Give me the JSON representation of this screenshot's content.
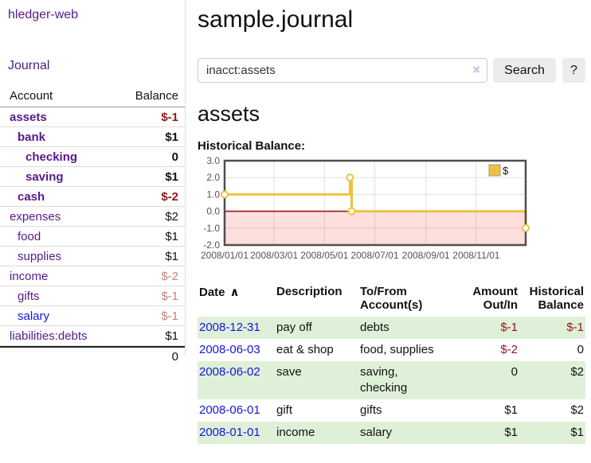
{
  "sidebar": {
    "app_title": "hledger-web",
    "nav": {
      "journal_label": "Journal"
    },
    "accounts_table": {
      "col_account": "Account",
      "col_balance": "Balance",
      "rows": [
        {
          "label": "assets",
          "indent": 0,
          "bold": true,
          "balance": "$-1",
          "balance_tone": "neg-strong",
          "label_color": "purple"
        },
        {
          "label": "bank",
          "indent": 1,
          "bold": true,
          "balance": "$1",
          "balance_tone": "normal",
          "label_color": "purple"
        },
        {
          "label": "checking",
          "indent": 2,
          "bold": true,
          "balance": "0",
          "balance_tone": "normal",
          "label_color": "purple"
        },
        {
          "label": "saving",
          "indent": 2,
          "bold": true,
          "balance": "$1",
          "balance_tone": "normal",
          "label_color": "purple"
        },
        {
          "label": "cash",
          "indent": 1,
          "bold": true,
          "balance": "$-2",
          "balance_tone": "neg-strong",
          "label_color": "purple"
        },
        {
          "label": "expenses",
          "indent": 0,
          "bold": false,
          "balance": "$2",
          "balance_tone": "normal",
          "label_color": "purple"
        },
        {
          "label": "food",
          "indent": 1,
          "bold": false,
          "balance": "$1",
          "balance_tone": "normal",
          "label_color": "purple"
        },
        {
          "label": "supplies",
          "indent": 1,
          "bold": false,
          "balance": "$1",
          "balance_tone": "normal",
          "label_color": "purple"
        },
        {
          "label": "income",
          "indent": 0,
          "bold": false,
          "balance": "$-2",
          "balance_tone": "neg-muted",
          "label_color": "purple"
        },
        {
          "label": "gifts",
          "indent": 1,
          "bold": false,
          "balance": "$-1",
          "balance_tone": "neg-muted",
          "label_color": "purple"
        },
        {
          "label": "salary",
          "indent": 1,
          "bold": false,
          "balance": "$-1",
          "balance_tone": "neg-muted",
          "label_color": "blue"
        },
        {
          "label": "liabilities:debts",
          "indent": 0,
          "bold": false,
          "balance": "$1",
          "balance_tone": "normal",
          "label_color": "purple"
        }
      ],
      "total": "0"
    }
  },
  "main": {
    "title": "sample.journal",
    "search": {
      "value": "inacct:assets",
      "clear_icon": "×",
      "search_label": "Search",
      "help_label": "?"
    },
    "account_heading": "assets",
    "chart_label": "Historical Balance:",
    "register_table": {
      "headers": {
        "date": "Date",
        "sort_asc_icon": "∧",
        "description": "Description",
        "accounts": "To/From\nAccount(s)",
        "amount": "Amount\nOut/In",
        "balance": "Historical\nBalance"
      },
      "rows": [
        {
          "date": "2008-12-31",
          "description": "pay off",
          "accounts": "debts",
          "amount": "$-1",
          "amount_negative": true,
          "balance": "$-1",
          "balance_negative": true
        },
        {
          "date": "2008-06-03",
          "description": "eat & shop",
          "accounts": "food, supplies",
          "amount": "$-2",
          "amount_negative": true,
          "balance": "0",
          "balance_negative": false
        },
        {
          "date": "2008-06-02",
          "description": "save",
          "accounts": "saving,\nchecking",
          "amount": "0",
          "amount_negative": false,
          "balance": "$2",
          "balance_negative": false
        },
        {
          "date": "2008-06-01",
          "description": "gift",
          "accounts": "gifts",
          "amount": "$1",
          "amount_negative": false,
          "balance": "$2",
          "balance_negative": false
        },
        {
          "date": "2008-01-01",
          "description": "income",
          "accounts": "salary",
          "amount": "$1",
          "amount_negative": false,
          "balance": "$1",
          "balance_negative": false
        }
      ]
    }
  },
  "chart_data": {
    "type": "line",
    "title": "Historical Balance",
    "step": true,
    "series": [
      {
        "name": "$",
        "color": "#edc240",
        "points": [
          [
            "2008-01-01",
            1.0
          ],
          [
            "2008-06-01",
            2.0
          ],
          [
            "2008-06-03",
            0.0
          ],
          [
            "2008-12-31",
            -1.0
          ]
        ]
      }
    ],
    "x_range": [
      "2008-01-01",
      "2008-12-31"
    ],
    "ylim": [
      -2.0,
      3.0
    ],
    "y_ticks": [
      3.0,
      2.0,
      1.0,
      0.0,
      -1.0,
      -2.0
    ],
    "x_ticks": [
      {
        "date": "2008-01-01",
        "label": "2008/01/01"
      },
      {
        "date": "2008-03-01",
        "label": "2008/03/01"
      },
      {
        "date": "2008-05-01",
        "label": "2008/05/01"
      },
      {
        "date": "2008-07-01",
        "label": "2008/07/01"
      },
      {
        "date": "2008-09-01",
        "label": "2008/09/01"
      },
      {
        "date": "2008-11-01",
        "label": "2008/11/01"
      }
    ],
    "legend": {
      "label": "$",
      "position": "top-right"
    },
    "grid": true,
    "negative_region_fill": "rgba(255,70,70,0.18)",
    "zero_line_color": "#9d1420",
    "border_color": "#4f4f4f"
  },
  "colors": {
    "link_purple": "#551a8b",
    "link_blue": "#1414e0",
    "negative_strong": "#8c1a1a",
    "negative_muted": "#c98383",
    "row_stripe_green": "#dff0d8",
    "chart_line_gold": "#edc240"
  }
}
